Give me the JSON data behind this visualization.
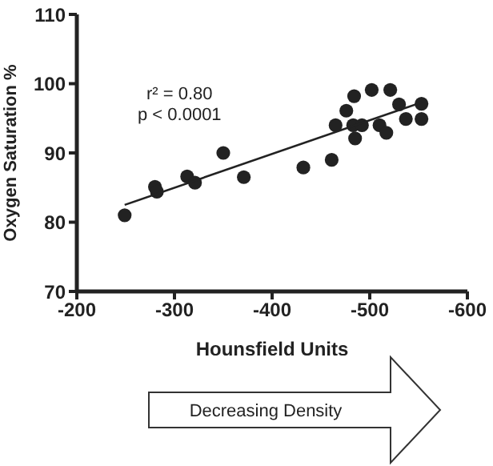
{
  "chart_data": {
    "type": "scatter",
    "xlabel": "Hounsfield Units",
    "ylabel": "Oxygen Saturation %",
    "xlim": [
      -200,
      -600
    ],
    "xticks": [
      -200,
      -300,
      -400,
      -500,
      -600
    ],
    "ylim": [
      70,
      110
    ],
    "yticks": [
      70,
      80,
      90,
      100,
      110
    ],
    "marker": "circle",
    "annotations": [
      "r² = 0.80",
      "p < 0.0001",
      "Decreasing Density"
    ],
    "series": [
      {
        "color": "#222222",
        "x": [
          -249,
          -280,
          -282,
          -313,
          -321,
          -350,
          -371,
          -432,
          -461,
          -465,
          -476,
          -484,
          -483,
          -485,
          -492,
          -502,
          -510,
          -517,
          -521,
          -530,
          -537,
          -553,
          -553
        ],
        "values": [
          81,
          85.1,
          84.4,
          86.6,
          85.7,
          90,
          86.5,
          87.9,
          89,
          94,
          96.1,
          98.2,
          94,
          92.1,
          94,
          99.1,
          94,
          92.9,
          99.1,
          97,
          94.9,
          97.1,
          94.9
        ]
      },
      {
        "type": "line",
        "color": "#222222",
        "marker": "none",
        "x": [
          -249,
          -553
        ],
        "values": [
          82.5,
          97.3
        ]
      }
    ]
  }
}
